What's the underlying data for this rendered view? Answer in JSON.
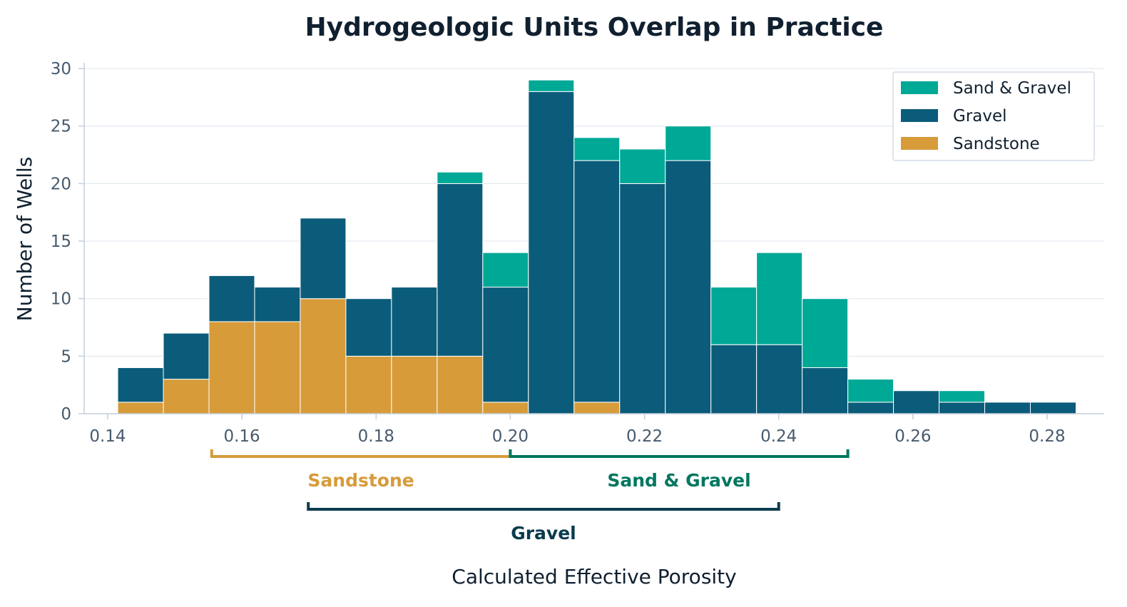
{
  "chart_data": {
    "type": "bar",
    "stacked": true,
    "title": "Hydrogeologic Units Overlap in Practice",
    "xlabel": "Calculated Effective Porosity",
    "ylabel": "Number of Wells",
    "xlim": [
      0.1365,
      0.2885
    ],
    "ylim": [
      0,
      30.5
    ],
    "xticks": [
      "0.14",
      "0.16",
      "0.18",
      "0.20",
      "0.22",
      "0.24",
      "0.26",
      "0.28"
    ],
    "yticks": [
      "0",
      "5",
      "10",
      "15",
      "20",
      "25",
      "30"
    ],
    "grid": "horizontal",
    "legend_position": "top-right",
    "bin_edges": [
      0.1415,
      0.1483,
      0.1551,
      0.1619,
      0.1687,
      0.1755,
      0.1823,
      0.1891,
      0.1959,
      0.2027,
      0.2095,
      0.2163,
      0.2231,
      0.2299,
      0.2367,
      0.2435,
      0.2503,
      0.2571,
      0.2639,
      0.2707,
      0.2775,
      0.2843
    ],
    "series": [
      {
        "name": "Sandstone",
        "color": "#d79b3a",
        "values": [
          1,
          3,
          8,
          8,
          10,
          5,
          5,
          5,
          1,
          0,
          1,
          0,
          0,
          0,
          0,
          0,
          0,
          0,
          0,
          0,
          0
        ]
      },
      {
        "name": "Gravel",
        "color": "#0b5c7a",
        "values": [
          3,
          4,
          4,
          3,
          7,
          5,
          6,
          15,
          10,
          28,
          21,
          20,
          22,
          6,
          6,
          4,
          1,
          2,
          1,
          1,
          1
        ]
      },
      {
        "name": "Sand & Gravel",
        "color": "#00a896",
        "values": [
          0,
          0,
          0,
          0,
          0,
          0,
          0,
          1,
          3,
          1,
          2,
          3,
          3,
          5,
          8,
          6,
          2,
          0,
          1,
          0,
          0
        ]
      }
    ],
    "legend_order": [
      "Sand & Gravel",
      "Gravel",
      "Sandstone"
    ],
    "ranges": [
      {
        "label": "Sandstone",
        "from": 0.1555,
        "to": 0.2,
        "color": "#d79b3a"
      },
      {
        "label": "Sand & Gravel",
        "from": 0.2,
        "to": 0.2503,
        "color": "#00775f"
      },
      {
        "label": "Gravel",
        "from": 0.1699,
        "to": 0.24,
        "color": "#0a3b4d"
      }
    ]
  }
}
